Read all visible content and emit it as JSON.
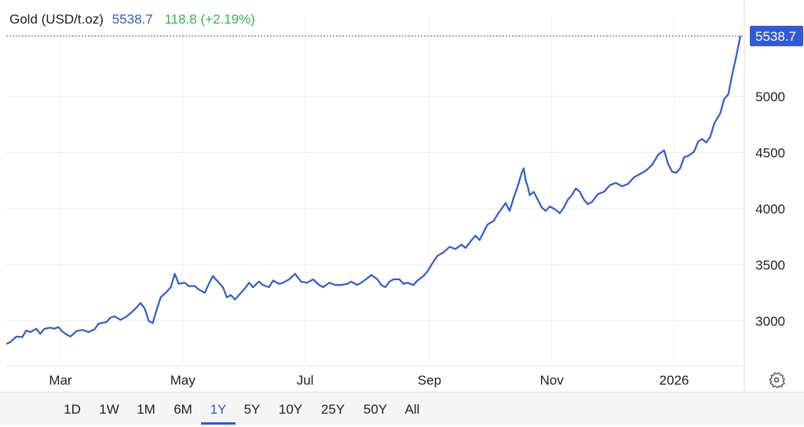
{
  "header": {
    "instrument": "Gold (USD/t.oz)",
    "price": "5538.7",
    "change": "118.8 (+2.19%)"
  },
  "price_badge": "5538.7",
  "range_buttons": [
    "1D",
    "1W",
    "1M",
    "6M",
    "1Y",
    "5Y",
    "10Y",
    "25Y",
    "50Y",
    "All"
  ],
  "active_range": "1Y",
  "icons": {
    "settings": "gear-icon"
  },
  "colors": {
    "line": "#2f5bd8",
    "change": "#2fb84a",
    "badge": "#2f5bd8"
  },
  "chart_data": {
    "type": "line",
    "title": "Gold (USD/t.oz)",
    "xlabel": "",
    "ylabel": "",
    "x_tick_labels": [
      "Mar",
      "May",
      "Jul",
      "Sep",
      "Nov",
      "2026"
    ],
    "y_ticks": [
      3000,
      3500,
      4000,
      4500,
      5000
    ],
    "ylim": [
      2600,
      5650
    ],
    "xlim": [
      "2025-02-02",
      "2026-02-05"
    ],
    "grid": true,
    "last_value": 5538.7,
    "series": [
      {
        "name": "",
        "points": [
          [
            "2025-02-02",
            2795
          ],
          [
            "2025-02-04",
            2810
          ],
          [
            "2025-02-07",
            2860
          ],
          [
            "2025-02-10",
            2855
          ],
          [
            "2025-02-12",
            2915
          ],
          [
            "2025-02-14",
            2900
          ],
          [
            "2025-02-17",
            2930
          ],
          [
            "2025-02-19",
            2885
          ],
          [
            "2025-02-21",
            2930
          ],
          [
            "2025-02-24",
            2940
          ],
          [
            "2025-02-26",
            2930
          ],
          [
            "2025-02-28",
            2945
          ],
          [
            "2025-03-02",
            2905
          ],
          [
            "2025-03-04",
            2880
          ],
          [
            "2025-03-06",
            2860
          ],
          [
            "2025-03-09",
            2910
          ],
          [
            "2025-03-12",
            2920
          ],
          [
            "2025-03-15",
            2900
          ],
          [
            "2025-03-18",
            2925
          ],
          [
            "2025-03-20",
            2975
          ],
          [
            "2025-03-24",
            2990
          ],
          [
            "2025-03-26",
            3030
          ],
          [
            "2025-03-28",
            3040
          ],
          [
            "2025-03-31",
            3010
          ],
          [
            "2025-04-03",
            3040
          ],
          [
            "2025-04-06",
            3085
          ],
          [
            "2025-04-08",
            3120
          ],
          [
            "2025-04-10",
            3160
          ],
          [
            "2025-04-12",
            3110
          ],
          [
            "2025-04-14",
            3000
          ],
          [
            "2025-04-16",
            2980
          ],
          [
            "2025-04-18",
            3100
          ],
          [
            "2025-04-20",
            3210
          ],
          [
            "2025-04-23",
            3260
          ],
          [
            "2025-04-25",
            3300
          ],
          [
            "2025-04-27",
            3420
          ],
          [
            "2025-04-29",
            3330
          ],
          [
            "2025-05-02",
            3340
          ],
          [
            "2025-05-04",
            3310
          ],
          [
            "2025-05-07",
            3310
          ],
          [
            "2025-05-09",
            3280
          ],
          [
            "2025-05-12",
            3250
          ],
          [
            "2025-05-14",
            3330
          ],
          [
            "2025-05-16",
            3400
          ],
          [
            "2025-05-18",
            3360
          ],
          [
            "2025-05-21",
            3300
          ],
          [
            "2025-05-23",
            3210
          ],
          [
            "2025-05-25",
            3230
          ],
          [
            "2025-05-27",
            3190
          ],
          [
            "2025-05-29",
            3230
          ],
          [
            "2025-06-01",
            3290
          ],
          [
            "2025-06-03",
            3340
          ],
          [
            "2025-06-05",
            3300
          ],
          [
            "2025-06-08",
            3350
          ],
          [
            "2025-06-10",
            3320
          ],
          [
            "2025-06-13",
            3300
          ],
          [
            "2025-06-15",
            3360
          ],
          [
            "2025-06-18",
            3330
          ],
          [
            "2025-06-20",
            3340
          ],
          [
            "2025-06-23",
            3370
          ],
          [
            "2025-06-26",
            3420
          ],
          [
            "2025-06-29",
            3350
          ],
          [
            "2025-07-02",
            3340
          ],
          [
            "2025-07-05",
            3370
          ],
          [
            "2025-07-08",
            3320
          ],
          [
            "2025-07-10",
            3300
          ],
          [
            "2025-07-13",
            3340
          ],
          [
            "2025-07-16",
            3320
          ],
          [
            "2025-07-19",
            3320
          ],
          [
            "2025-07-22",
            3330
          ],
          [
            "2025-07-24",
            3350
          ],
          [
            "2025-07-27",
            3320
          ],
          [
            "2025-07-29",
            3340
          ],
          [
            "2025-08-01",
            3380
          ],
          [
            "2025-08-03",
            3410
          ],
          [
            "2025-08-06",
            3370
          ],
          [
            "2025-08-08",
            3320
          ],
          [
            "2025-08-10",
            3300
          ],
          [
            "2025-08-12",
            3350
          ],
          [
            "2025-08-14",
            3370
          ],
          [
            "2025-08-17",
            3370
          ],
          [
            "2025-08-19",
            3330
          ],
          [
            "2025-08-21",
            3340
          ],
          [
            "2025-08-24",
            3320
          ],
          [
            "2025-08-26",
            3360
          ],
          [
            "2025-08-29",
            3400
          ],
          [
            "2025-08-31",
            3440
          ],
          [
            "2025-09-02",
            3500
          ],
          [
            "2025-09-05",
            3580
          ],
          [
            "2025-09-08",
            3610
          ],
          [
            "2025-09-11",
            3660
          ],
          [
            "2025-09-14",
            3640
          ],
          [
            "2025-09-17",
            3680
          ],
          [
            "2025-09-19",
            3650
          ],
          [
            "2025-09-22",
            3720
          ],
          [
            "2025-09-24",
            3760
          ],
          [
            "2025-09-26",
            3720
          ],
          [
            "2025-09-28",
            3790
          ],
          [
            "2025-09-30",
            3860
          ],
          [
            "2025-10-03",
            3890
          ],
          [
            "2025-10-05",
            3950
          ],
          [
            "2025-10-07",
            4000
          ],
          [
            "2025-10-09",
            4050
          ],
          [
            "2025-10-11",
            3980
          ],
          [
            "2025-10-13",
            4100
          ],
          [
            "2025-10-15",
            4200
          ],
          [
            "2025-10-17",
            4320
          ],
          [
            "2025-10-18",
            4360
          ],
          [
            "2025-10-19",
            4250
          ],
          [
            "2025-10-20",
            4200
          ],
          [
            "2025-10-21",
            4120
          ],
          [
            "2025-10-23",
            4150
          ],
          [
            "2025-10-25",
            4080
          ],
          [
            "2025-10-27",
            4010
          ],
          [
            "2025-10-29",
            3980
          ],
          [
            "2025-10-31",
            4020
          ],
          [
            "2025-11-03",
            3990
          ],
          [
            "2025-11-05",
            3960
          ],
          [
            "2025-11-07",
            4010
          ],
          [
            "2025-11-09",
            4080
          ],
          [
            "2025-11-11",
            4120
          ],
          [
            "2025-11-13",
            4180
          ],
          [
            "2025-11-15",
            4150
          ],
          [
            "2025-11-17",
            4080
          ],
          [
            "2025-11-19",
            4040
          ],
          [
            "2025-11-21",
            4060
          ],
          [
            "2025-11-24",
            4130
          ],
          [
            "2025-11-27",
            4150
          ],
          [
            "2025-11-30",
            4210
          ],
          [
            "2025-12-03",
            4230
          ],
          [
            "2025-12-06",
            4200
          ],
          [
            "2025-12-09",
            4220
          ],
          [
            "2025-12-12",
            4280
          ],
          [
            "2025-12-15",
            4310
          ],
          [
            "2025-12-18",
            4340
          ],
          [
            "2025-12-21",
            4390
          ],
          [
            "2025-12-24",
            4480
          ],
          [
            "2025-12-27",
            4520
          ],
          [
            "2025-12-29",
            4400
          ],
          [
            "2025-12-31",
            4330
          ],
          [
            "2026-01-02",
            4320
          ],
          [
            "2026-01-04",
            4360
          ],
          [
            "2026-01-06",
            4460
          ],
          [
            "2026-01-08",
            4470
          ],
          [
            "2026-01-11",
            4510
          ],
          [
            "2026-01-13",
            4600
          ],
          [
            "2026-01-15",
            4620
          ],
          [
            "2026-01-17",
            4590
          ],
          [
            "2026-01-19",
            4640
          ],
          [
            "2026-01-21",
            4760
          ],
          [
            "2026-01-24",
            4850
          ],
          [
            "2026-01-26",
            4980
          ],
          [
            "2026-01-28",
            5020
          ],
          [
            "2026-01-30",
            5200
          ],
          [
            "2026-02-01",
            5360
          ],
          [
            "2026-02-03",
            5538.7
          ]
        ]
      }
    ]
  }
}
